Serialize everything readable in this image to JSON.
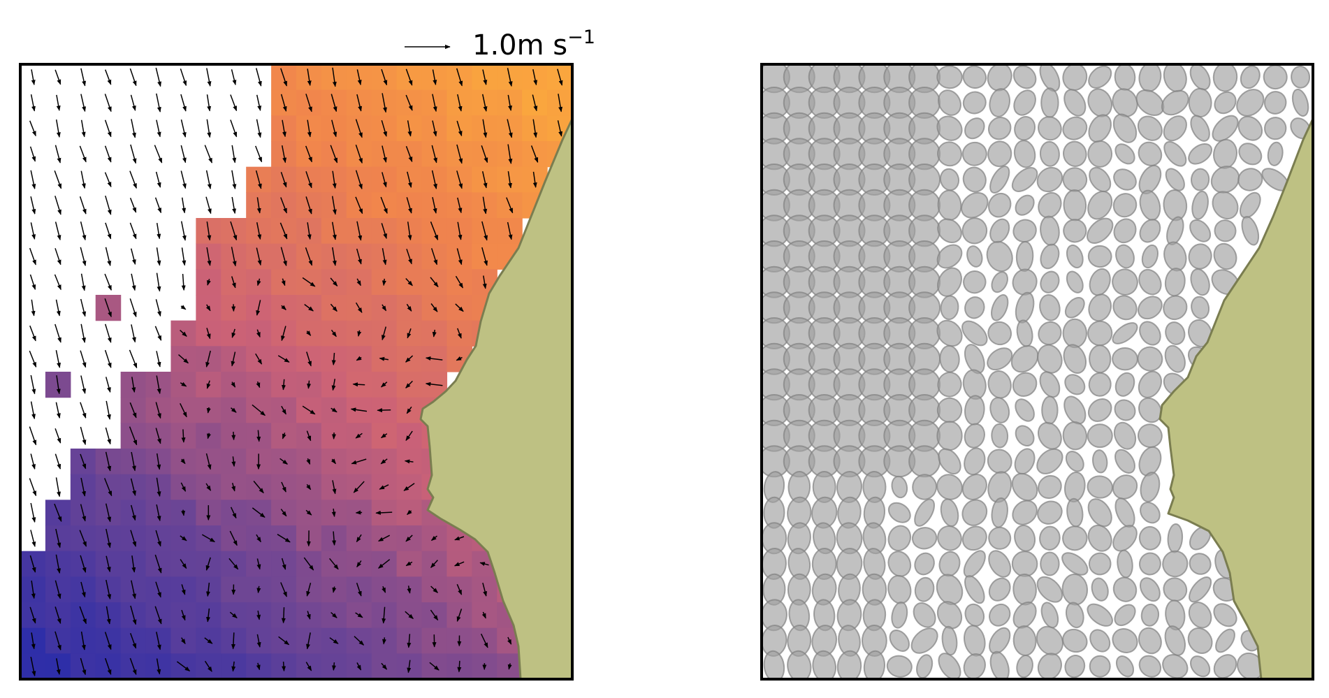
{
  "figure": {
    "quiver_key": {
      "magnitude": 1.0,
      "label": "1.0m s",
      "exponent": "−1"
    }
  },
  "chart_data": [
    {
      "type": "heatmap",
      "panel": "left",
      "grid": {
        "nx": 22,
        "ny": 24
      },
      "colormap": [
        "#2e2ea8",
        "#6c4595",
        "#cb6277",
        "#f0844d",
        "#fba83d"
      ],
      "land_color": "#bec183",
      "land_edge_color": "#7a7d50",
      "overlay": "quiver",
      "axes": {
        "ticks": false,
        "frame": true
      }
    },
    {
      "type": "scatter",
      "panel": "right",
      "marker": "ellipse",
      "grid": {
        "nx": 22,
        "ny": 24
      },
      "marker_color": "#a0a0a0",
      "marker_edge_color": "#808080",
      "land_color": "#bec183",
      "land_edge_color": "#7a7d50",
      "axes": {
        "ticks": false,
        "frame": true
      }
    }
  ]
}
